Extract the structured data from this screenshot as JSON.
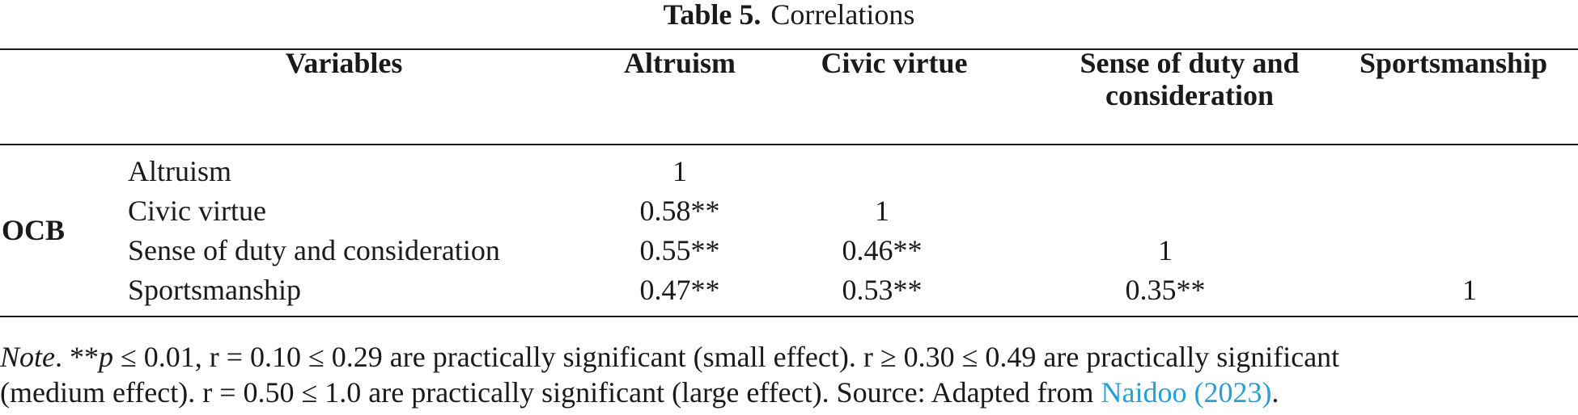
{
  "caption": {
    "label": "Table 5.",
    "title": "Correlations"
  },
  "table": {
    "headers": {
      "variables": "Variables",
      "altruism": "Altruism",
      "civic_virtue": "Civic virtue",
      "duty_line1": "Sense of duty and",
      "duty_line2": "consideration",
      "sportsmanship": "Sportsmanship"
    },
    "group_label": "OCB",
    "rows": [
      {
        "label": "Altruism",
        "altruism": "1",
        "civic_virtue": "",
        "duty": "",
        "sportsmanship": ""
      },
      {
        "label": "Civic virtue",
        "altruism": "0.58**",
        "civic_virtue": "1",
        "duty": "",
        "sportsmanship": ""
      },
      {
        "label": "Sense of duty and consideration",
        "altruism": "0.55**",
        "civic_virtue": "0.46**",
        "duty": "1",
        "sportsmanship": ""
      },
      {
        "label": "Sportsmanship",
        "altruism": "0.47**",
        "civic_virtue": "0.53**",
        "duty": "0.35**",
        "sportsmanship": "1"
      }
    ]
  },
  "note": {
    "label": "Note",
    "p_prefix": "**",
    "p_symbol": "p",
    "line1_rest": " ≤ 0.01, r = 0.10 ≤ 0.29 are practically significant (small effect). r ≥ 0.30 ≤ 0.49 are practically significant",
    "line2": "(medium effect). r = 0.50 ≤ 1.0 are practically significant (large effect). Source: Adapted from ",
    "link_text": "Naidoo (2023)",
    "end": "."
  },
  "colors": {
    "text": "#1a1a1a",
    "link": "#2a9fd6"
  }
}
